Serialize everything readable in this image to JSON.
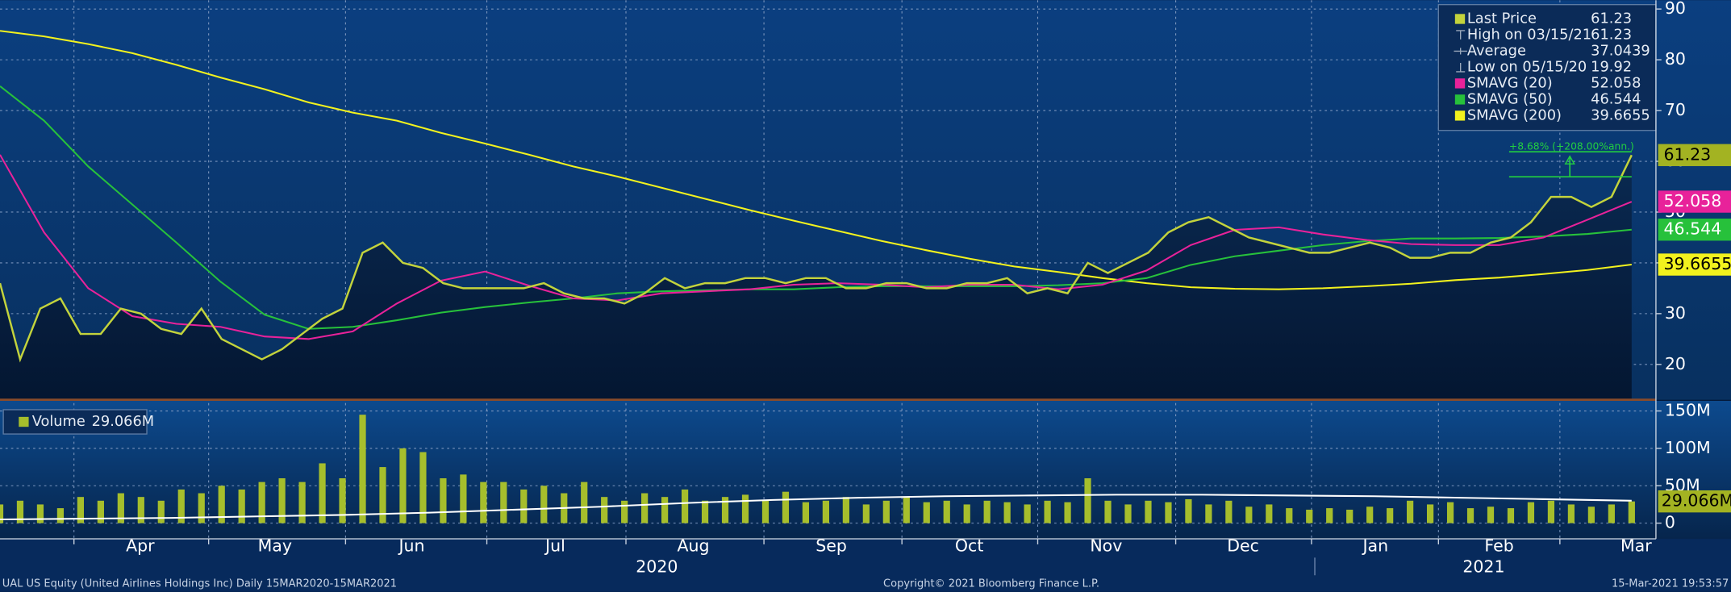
{
  "chart_data": [
    {
      "type": "line",
      "series": [
        {
          "name": "Last Price",
          "color": "#c3d33c",
          "values": [
            36,
            21,
            31,
            33,
            26,
            26,
            31,
            30,
            27,
            26,
            31,
            25,
            23,
            21,
            23,
            26,
            29,
            31,
            42,
            44,
            40,
            39,
            36,
            35,
            35,
            35,
            35,
            36,
            34,
            33,
            33,
            32,
            34,
            37,
            35,
            36,
            36,
            37,
            37,
            36,
            37,
            37,
            35,
            35,
            36,
            36,
            35,
            35,
            36,
            36,
            37,
            34,
            35,
            34,
            40,
            38,
            40,
            42,
            46,
            48,
            49,
            47,
            45,
            44,
            43,
            42,
            42,
            43,
            44,
            43,
            41,
            41,
            42,
            42,
            44,
            45,
            48,
            53,
            53,
            51,
            53,
            61.23
          ]
        },
        {
          "name": "SMAVG (20)",
          "color": "#e8229a",
          "values": [
            61.3,
            46,
            35,
            29.5,
            28,
            27.4,
            25.5,
            25,
            26.5,
            32,
            36.5,
            38.3,
            35.5,
            33,
            32.6,
            34,
            34.4,
            34.8,
            35.7,
            36,
            35.7,
            35.2,
            35.7,
            35.7,
            34.8,
            35.7,
            38.5,
            43.5,
            46.5,
            47,
            45.6,
            44.5,
            43.7,
            43.5,
            43.5,
            45,
            48.5,
            52.058
          ]
        },
        {
          "name": "SMAVG (50)",
          "color": "#27c13b",
          "values": [
            74.8,
            68,
            59,
            51.5,
            44,
            36.3,
            29.8,
            27,
            27.4,
            28.7,
            30.2,
            31.3,
            32.2,
            33,
            34,
            34.4,
            34.6,
            34.8,
            34.8,
            35.2,
            35.4,
            35.4,
            35.4,
            35.4,
            35.6,
            36,
            37,
            39.6,
            41.3,
            42.4,
            43.5,
            44.3,
            44.8,
            44.8,
            44.9,
            45.2,
            45.7,
            46.544
          ]
        },
        {
          "name": "SMAVG (200)",
          "color": "#f2f21e",
          "values": [
            85.7,
            84.6,
            83.1,
            81.3,
            79,
            76.5,
            74.2,
            71.6,
            69.6,
            68,
            65.6,
            63.5,
            61.3,
            59,
            57,
            54.8,
            52.6,
            50.4,
            48.3,
            46.3,
            44.3,
            42.5,
            40.8,
            39.3,
            38.2,
            37,
            36,
            35.2,
            34.9,
            34.8,
            35,
            35.4,
            35.9,
            36.6,
            37.1,
            37.8,
            38.6,
            39.6655
          ]
        }
      ],
      "stats": [
        {
          "label": "High on 03/15/21",
          "value": 61.23
        },
        {
          "label": "Average",
          "value": 37.0439
        },
        {
          "label": "Low on 05/15/20",
          "value": 19.92
        }
      ],
      "annotation": "+8.68% (+208.00%ann.)",
      "ylim": [
        13.04,
        91.74
      ],
      "yticks": [
        20,
        30,
        40,
        50,
        60,
        70,
        80,
        90
      ],
      "grid": true,
      "legend": "upper right"
    },
    {
      "type": "bar",
      "series": [
        {
          "name": "Volume",
          "color": "#a6be2c",
          "last_label": "29.066M",
          "values": [
            25000000,
            30000000,
            25000000,
            20000000,
            35000000,
            30000000,
            40000000,
            35000000,
            30000000,
            45000000,
            40000000,
            50000000,
            45000000,
            55000000,
            60000000,
            55000000,
            80000000,
            60000000,
            145000000,
            75000000,
            100000000,
            95000000,
            60000000,
            65000000,
            55000000,
            55000000,
            45000000,
            50000000,
            40000000,
            55000000,
            35000000,
            30000000,
            40000000,
            35000000,
            45000000,
            30000000,
            35000000,
            38000000,
            30000000,
            42000000,
            28000000,
            30000000,
            35000000,
            25000000,
            30000000,
            35000000,
            28000000,
            30000000,
            25000000,
            30000000,
            28000000,
            25000000,
            30000000,
            28000000,
            60000000,
            30000000,
            25000000,
            30000000,
            28000000,
            32000000,
            25000000,
            30000000,
            22000000,
            25000000,
            20000000,
            18000000,
            20000000,
            18000000,
            22000000,
            20000000,
            30000000,
            25000000,
            28000000,
            20000000,
            22000000,
            20000000,
            28000000,
            30000000,
            25000000,
            22000000,
            25000000,
            29066000
          ]
        },
        {
          "color": "#ffffff",
          "values": [
            5000000,
            6000000,
            7000000,
            9000000,
            11000000,
            14000000,
            18000000,
            22000000,
            27000000,
            31000000,
            34000000,
            36000000,
            37000000,
            38000000,
            38000000,
            37000000,
            36000000,
            34000000,
            32000000,
            30000000
          ]
        }
      ],
      "ylim": [
        -21000000,
        163500000
      ],
      "yticks": [
        0,
        {
          "value": 50000000,
          "label": "50M"
        },
        {
          "value": 100000000,
          "label": "100M"
        },
        {
          "value": 150000000,
          "label": "150M"
        }
      ],
      "x_labels": [
        "Apr",
        "May",
        "Jun",
        "Jul",
        "Aug",
        "Sep",
        "Oct",
        "Nov",
        "Dec",
        "Jan",
        "Feb",
        "Mar"
      ],
      "years": [
        "2020",
        "2021"
      ],
      "legend": "upper left"
    }
  ],
  "footer": {
    "left": "UAL US Equity (United Airlines Holdings Inc)  Daily 15MAR2020-15MAR2021",
    "center": "Copyright© 2021 Bloomberg Finance L.P.",
    "right": "15-Mar-2021 19:53:57"
  }
}
